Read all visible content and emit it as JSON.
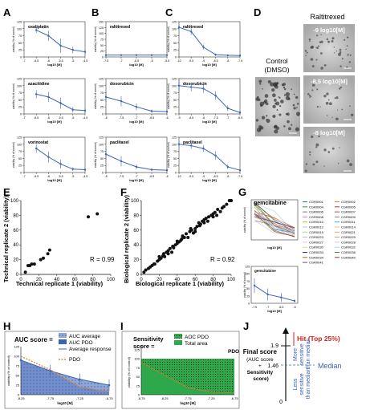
{
  "panel_letters": [
    "A",
    "B",
    "C",
    "D",
    "E",
    "F",
    "G",
    "H",
    "I",
    "J"
  ],
  "common": {
    "ylabel": "viability (% of control)",
    "xlabel": "log10 [M]"
  },
  "panel_d": {
    "title": "Raltitrexed",
    "control_label_1": "Control",
    "control_label_2": "(DMSO)",
    "images": [
      "-9 log10[M]",
      "-8,5 log10[M]",
      "-8 log10[M]"
    ]
  },
  "panel_e": {
    "xlabel": "Technical replicate 1 (viability)",
    "ylabel": "Technical replicate 2 (viability)",
    "r": "R = 0.99"
  },
  "panel_f": {
    "xlabel": "Biological replicate 1 (viability)",
    "ylabel": "Biological replicate 2 (viability)",
    "r": "R = 0.92"
  },
  "panel_g": {
    "title_top": "gemcitabine",
    "title_bottom": "gemcitabine",
    "legend": [
      "CGR0001",
      "CGR0002",
      "CGR0004",
      "CGR0005",
      "CGR0006",
      "CGR0007",
      "CGR0008",
      "CGR0009",
      "CGR0010",
      "CGR0011",
      "CGR0012",
      "CGR0014",
      "CGR0019",
      "CGR0021",
      "CGR0023",
      "CGR0025",
      "CGR0027",
      "CGR0028",
      "CGR0030",
      "CGR0032",
      "CGR0033",
      "CGR0036",
      "CGR0034",
      "CGR0040",
      "CGR0041"
    ]
  },
  "panel_h": {
    "title": "AUC score",
    "title_suffix": " =",
    "legend": [
      "AUC average",
      "AUC PDO",
      "Average response",
      "PDO"
    ],
    "ylabel": "viability (% of control)",
    "xlabel": "log10 [M]"
  },
  "panel_i": {
    "title_1": "Sensitivity",
    "title_2": "score",
    "title_suffix": " =",
    "legend": [
      "AOC PDO",
      "Total area"
    ],
    "curve_label": "PDO",
    "ylabel": "viability (% of control)",
    "xlabel": "log10 [M]"
  },
  "panel_j": {
    "hit": "Hit  (Top 25%)",
    "final_1": "Final score",
    "final_2": "(AUC score",
    "final_3": "+",
    "final_4": "Sensitivity",
    "final_5": "score)",
    "more": [
      "More",
      "sensitive",
      "than median"
    ],
    "less": [
      "Less",
      "sensitive",
      "than median"
    ],
    "median": "Median",
    "ticks": [
      "1.9",
      "1.46",
      "0"
    ]
  },
  "colors": {
    "line": "#3b63b8",
    "green": "#2ea84a",
    "red": "#d42020",
    "orange": "#e07a2a",
    "area": "#8fa7d8"
  },
  "chart_data": [
    {
      "type": "line",
      "panel": "A",
      "title": "oxaliplatin",
      "x": [
        -6.5,
        -6,
        -5.5,
        -5,
        -4.5
      ],
      "values": [
        95,
        75,
        40,
        25,
        18
      ],
      "errors": [
        10,
        18,
        25,
        12,
        8
      ],
      "xlim": [
        -7,
        -4.5
      ],
      "xticks": [
        "-7",
        "-6.5",
        "-6",
        "-5.5",
        "-5",
        "-4.5"
      ],
      "ylim": [
        0,
        125
      ],
      "yticks": [
        "0",
        "25",
        "50",
        "75",
        "100",
        "125"
      ]
    },
    {
      "type": "line",
      "panel": "B",
      "title": "raltitrexed",
      "x": [
        -7.5,
        -7,
        -6.5,
        -6,
        -5.5
      ],
      "values": [
        8,
        8,
        8,
        8,
        8
      ],
      "errors": [
        3,
        3,
        3,
        3,
        3
      ],
      "xlim": [
        -7.5,
        -5.5
      ],
      "xticks": [
        "-7.5",
        "-7",
        "-6.5",
        "-6",
        "-5.5"
      ],
      "ylim": [
        0,
        150
      ],
      "yticks": [
        "0",
        "25",
        "50",
        "75",
        "100",
        "125",
        "150"
      ]
    },
    {
      "type": "line",
      "panel": "C",
      "title": "raltitrexed",
      "x": [
        -10,
        -9.5,
        -9,
        -8.5,
        -8,
        -7.5
      ],
      "values": [
        105,
        90,
        35,
        8,
        6,
        5
      ],
      "errors": [
        8,
        12,
        8,
        4,
        3,
        3
      ],
      "xlim": [
        -10,
        -7.5
      ],
      "xticks": [
        "-10",
        "-9.5",
        "-9",
        "-8.5",
        "-8",
        "-7.5"
      ],
      "ylim": [
        0,
        125
      ],
      "yticks": [
        "0",
        "25",
        "50",
        "75",
        "100",
        "125"
      ]
    },
    {
      "type": "line",
      "panel": "A",
      "title": "azacitidine",
      "x": [
        -6.5,
        -6,
        -5.5,
        -5,
        -4.5
      ],
      "values": [
        70,
        60,
        38,
        15,
        12
      ],
      "errors": [
        15,
        18,
        20,
        10,
        8
      ],
      "xlim": [
        -7,
        -4.5
      ],
      "xticks": [
        "-7",
        "-6.5",
        "-6",
        "-5.5",
        "-5",
        "-4.5"
      ],
      "ylim": [
        0,
        125
      ],
      "yticks": [
        "0",
        "25",
        "50",
        "75",
        "100",
        "125"
      ]
    },
    {
      "type": "line",
      "panel": "B",
      "title": "doxorubicin",
      "x": [
        -8,
        -7.5,
        -7,
        -6.5,
        -6
      ],
      "values": [
        60,
        45,
        25,
        10,
        8
      ],
      "errors": [
        20,
        18,
        12,
        6,
        5
      ],
      "xlim": [
        -8,
        -6
      ],
      "xticks": [
        "-8",
        "-7.5",
        "-7",
        "-6.5",
        "-6"
      ],
      "ylim": [
        0,
        125
      ],
      "yticks": [
        "0",
        "25",
        "50",
        "75",
        "100",
        "125"
      ]
    },
    {
      "type": "line",
      "panel": "C",
      "title": "doxorubicin",
      "x": [
        -9,
        -8.5,
        -8,
        -7.5,
        -7,
        -6.5
      ],
      "values": [
        100,
        95,
        90,
        65,
        20,
        5
      ],
      "errors": [
        18,
        15,
        15,
        15,
        10,
        5
      ],
      "xlim": [
        -9,
        -6.5
      ],
      "xticks": [
        "-9",
        "-8.5",
        "-8",
        "-7.5",
        "-7",
        "-6.5"
      ],
      "ylim": [
        0,
        125
      ],
      "yticks": [
        "0",
        "25",
        "50",
        "75",
        "100",
        "125"
      ]
    },
    {
      "type": "line",
      "panel": "A",
      "title": "vorinostat",
      "x": [
        -6.5,
        -6,
        -5.5,
        -5,
        -4.5
      ],
      "values": [
        85,
        55,
        30,
        12,
        10
      ],
      "errors": [
        15,
        20,
        15,
        6,
        5
      ],
      "xlim": [
        -7,
        -4.5
      ],
      "xticks": [
        "-7",
        "-6.5",
        "-6",
        "-5.5",
        "-5",
        "-4.5"
      ],
      "ylim": [
        0,
        125
      ],
      "yticks": [
        "0",
        "25",
        "50",
        "75",
        "100",
        "125"
      ]
    },
    {
      "type": "line",
      "panel": "B",
      "title": "paclitaxel",
      "x": [
        -8,
        -7.5,
        -7,
        -6.5,
        -6
      ],
      "values": [
        65,
        40,
        20,
        10,
        8
      ],
      "errors": [
        20,
        18,
        8,
        5,
        4
      ],
      "xlim": [
        -8,
        -6
      ],
      "xticks": [
        "-8",
        "-7.5",
        "-7",
        "-6.5",
        "-6"
      ],
      "ylim": [
        0,
        125
      ],
      "yticks": [
        "0",
        "25",
        "50",
        "75",
        "100",
        "125"
      ]
    },
    {
      "type": "line",
      "panel": "C",
      "title": "paclitaxel",
      "x": [
        -10,
        -9.5,
        -9,
        -8.5,
        -8,
        -7.5
      ],
      "values": [
        100,
        95,
        85,
        60,
        20,
        8
      ],
      "errors": [
        10,
        10,
        12,
        15,
        8,
        4
      ],
      "xlim": [
        -10,
        -7.5
      ],
      "xticks": [
        "-10",
        "-9.5",
        "-9",
        "-8.5",
        "-8",
        "-7.5"
      ],
      "ylim": [
        0,
        125
      ],
      "yticks": [
        "0",
        "25",
        "50",
        "75",
        "100",
        "125"
      ]
    },
    {
      "type": "scatter",
      "panel": "E",
      "x": [
        5,
        8,
        10,
        12,
        15,
        22,
        25,
        30,
        32,
        75,
        85
      ],
      "values": [
        3,
        12,
        12,
        14,
        14,
        20,
        22,
        28,
        33,
        78,
        82
      ],
      "xlim": [
        0,
        100
      ],
      "ylim": [
        0,
        100
      ],
      "xticks": [
        "0",
        "20",
        "40",
        "60",
        "80",
        "100"
      ],
      "yticks": [
        "0",
        "20",
        "40",
        "60",
        "80",
        "100"
      ]
    },
    {
      "type": "scatter",
      "panel": "F",
      "x": [
        3,
        5,
        8,
        10,
        12,
        14,
        15,
        18,
        20,
        20,
        22,
        24,
        25,
        26,
        28,
        30,
        30,
        32,
        34,
        35,
        36,
        38,
        40,
        40,
        42,
        44,
        45,
        46,
        48,
        50,
        52,
        54,
        55,
        56,
        58,
        60,
        60,
        62,
        64,
        65,
        66,
        68,
        70,
        70,
        72,
        74,
        75,
        78,
        80,
        80,
        82,
        84,
        85,
        88,
        90,
        92,
        95,
        98,
        100,
        100
      ],
      "values": [
        3,
        6,
        8,
        10,
        12,
        14,
        14,
        18,
        20,
        24,
        22,
        25,
        28,
        24,
        30,
        32,
        28,
        35,
        30,
        38,
        36,
        40,
        42,
        45,
        44,
        46,
        48,
        52,
        50,
        55,
        50,
        58,
        62,
        60,
        56,
        62,
        58,
        65,
        70,
        66,
        68,
        72,
        70,
        74,
        76,
        72,
        78,
        80,
        82,
        78,
        84,
        80,
        88,
        85,
        90,
        92,
        95,
        100,
        102,
        105
      ],
      "xlim": [
        0,
        100
      ],
      "ylim": [
        0,
        100
      ],
      "xticks": [
        "0",
        "20",
        "40",
        "60",
        "80",
        "100"
      ],
      "yticks": [
        "0",
        "20",
        "40",
        "60",
        "80",
        "100"
      ]
    },
    {
      "type": "line",
      "panel": "G-bottom",
      "title": "gemcitabine",
      "x": [
        -7.5,
        -7,
        -6.5,
        -6
      ],
      "values": [
        60,
        30,
        20,
        8
      ],
      "errors": [
        25,
        20,
        15,
        5
      ],
      "xlim": [
        -7.5,
        -6
      ],
      "xticks": [
        "-7.5",
        "-7",
        "-6.5",
        "-6"
      ],
      "ylim": [
        0,
        125
      ],
      "yticks": [
        "0",
        "25",
        "50",
        "75",
        "100",
        "125"
      ]
    },
    {
      "type": "area",
      "panel": "H",
      "x": [
        -8.25,
        -7.75,
        -7.25,
        -6.75
      ],
      "series": [
        {
          "name": "Average response",
          "values": [
            90,
            62,
            40,
            25
          ]
        },
        {
          "name": "PDO",
          "values": [
            100,
            65,
            20,
            8
          ]
        }
      ],
      "xlim": [
        -8.25,
        -6.75
      ],
      "xticks": [
        "-8,25",
        "-7,75",
        "-7,25",
        "-6,75"
      ],
      "ylim": [
        0,
        125
      ],
      "yticks": [
        "0",
        "25",
        "50",
        "75",
        "100",
        "125"
      ]
    },
    {
      "type": "area",
      "panel": "I",
      "x": [
        -8.75,
        -8.25,
        -7.75,
        -7.25,
        -6.75
      ],
      "series": [
        {
          "name": "PDO",
          "values": [
            90,
            55,
            20,
            8,
            5
          ]
        }
      ],
      "xlim": [
        -8.75,
        -6.75
      ],
      "xticks": [
        "-8,75",
        "-8,25",
        "-7,75",
        "-7,25",
        "-6,75"
      ],
      "ylim": [
        0,
        125
      ],
      "yticks": [
        "0",
        "25",
        "50",
        "75",
        "100",
        "125"
      ]
    }
  ]
}
